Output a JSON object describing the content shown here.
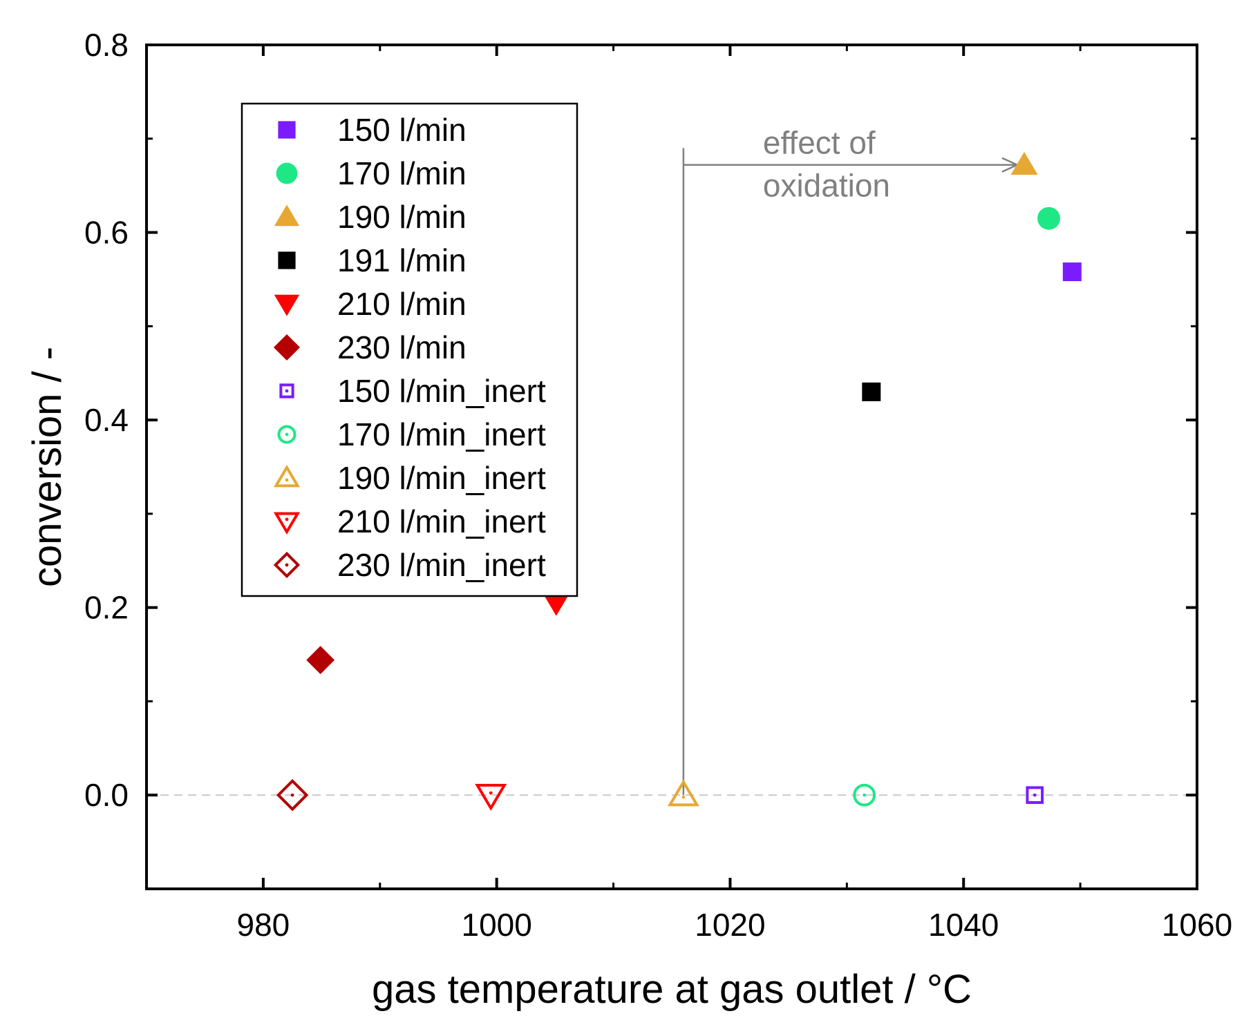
{
  "chart_data": {
    "type": "scatter",
    "xlabel": "gas temperature at gas outlet / °C",
    "ylabel": "conversion / -",
    "xlim": [
      970,
      1060
    ],
    "ylim": [
      -0.1,
      0.8
    ],
    "x_ticks": [
      980,
      1000,
      1020,
      1040,
      1060
    ],
    "x_tick_labels": [
      "980",
      "1000",
      "1020",
      "1040",
      "1060"
    ],
    "x_minor_ticks": [
      990,
      1010,
      1030,
      1050
    ],
    "y_ticks": [
      0.0,
      0.2,
      0.4,
      0.6,
      0.8
    ],
    "y_tick_labels": [
      "0.0",
      "0.2",
      "0.4",
      "0.6",
      "0.8"
    ],
    "y_minor_ticks": [
      0.1,
      0.3,
      0.5,
      0.7
    ],
    "grid": false,
    "reference_line": {
      "y": 0.0,
      "style": "dashed",
      "color": "#c8c8c8"
    },
    "legend_position": "top-left",
    "series": [
      {
        "name": "150 l/min",
        "marker": "square",
        "filled": true,
        "color": "#7a1cff",
        "points": [
          [
            1049.3,
            0.558
          ]
        ]
      },
      {
        "name": "170 l/min",
        "marker": "circle",
        "filled": true,
        "color": "#1ee886",
        "points": [
          [
            1047.3,
            0.615
          ]
        ]
      },
      {
        "name": "190 l/min",
        "marker": "triangle-up",
        "filled": true,
        "color": "#e6a832",
        "points": [
          [
            1045.2,
            0.672
          ]
        ]
      },
      {
        "name": "191 l/min",
        "marker": "square",
        "filled": true,
        "color": "#000000",
        "points": [
          [
            1032.1,
            0.43
          ]
        ]
      },
      {
        "name": "210 l/min",
        "marker": "triangle-down",
        "filled": true,
        "color": "#ff0000",
        "points": [
          [
            1005.1,
            0.205
          ]
        ]
      },
      {
        "name": "230 l/min",
        "marker": "diamond",
        "filled": true,
        "color": "#b30000",
        "points": [
          [
            984.9,
            0.144
          ]
        ]
      },
      {
        "name": "150 l/min_inert",
        "marker": "square",
        "filled": false,
        "color": "#7a1cff",
        "points": [
          [
            1046.1,
            0.0
          ]
        ]
      },
      {
        "name": "170 l/min_inert",
        "marker": "circle",
        "filled": false,
        "color": "#1ee886",
        "points": [
          [
            1031.5,
            0.0
          ]
        ]
      },
      {
        "name": "190 l/min_inert",
        "marker": "triangle-up",
        "filled": false,
        "color": "#e6a832",
        "points": [
          [
            1016.0,
            0.0
          ]
        ]
      },
      {
        "name": "210 l/min_inert",
        "marker": "triangle-down",
        "filled": false,
        "color": "#ff0000",
        "points": [
          [
            999.5,
            0.0
          ]
        ]
      },
      {
        "name": "230 l/min_inert",
        "marker": "diamond",
        "filled": false,
        "color": "#b30000",
        "points": [
          [
            982.5,
            0.0
          ]
        ]
      }
    ],
    "annotations": [
      {
        "text_lines": [
          "effect of",
          "oxidation"
        ],
        "color": "#808080",
        "arrow_path": [
          [
            1016.0,
            0.0
          ],
          [
            1016.0,
            0.69
          ],
          [
            1016.0,
            0.672
          ],
          [
            1044.6,
            0.672
          ]
        ]
      }
    ]
  }
}
